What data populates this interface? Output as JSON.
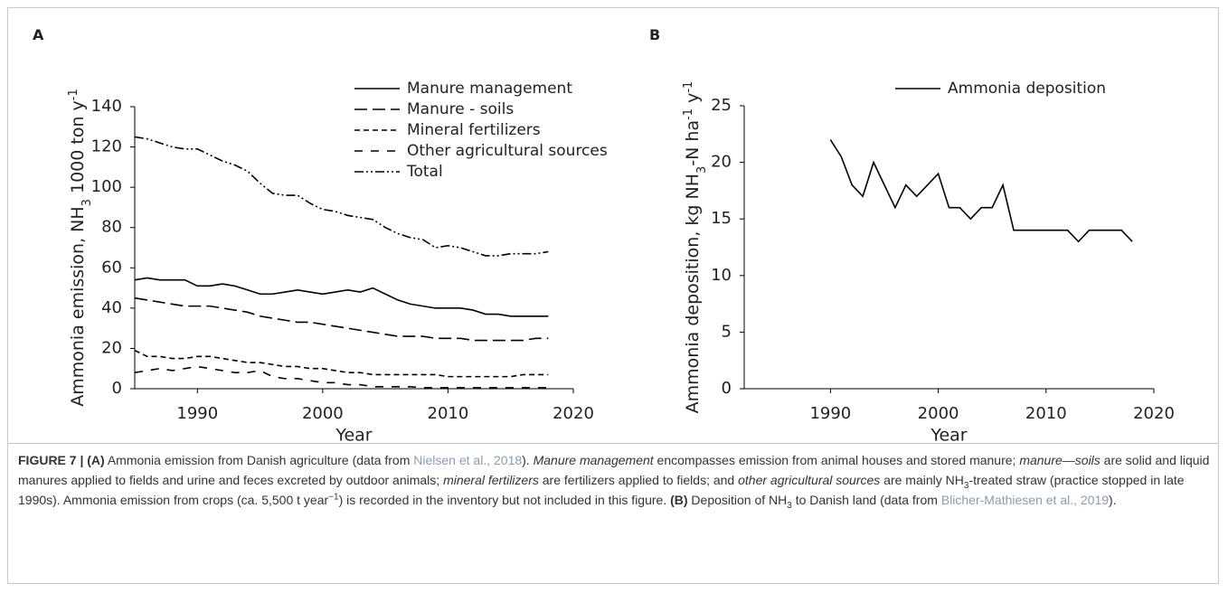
{
  "chart_data": [
    {
      "type": "line",
      "panel": "A",
      "ylabel": [
        {
          "text": "Ammonia emission, NH"
        },
        {
          "text": "3",
          "sub": true
        },
        {
          "text": " 1000 ton y"
        },
        {
          "text": "-1",
          "sup": true
        }
      ],
      "xlabel": "Year",
      "x": [
        1985,
        1986,
        1987,
        1988,
        1989,
        1990,
        1991,
        1992,
        1993,
        1994,
        1995,
        1996,
        1997,
        1998,
        1999,
        2000,
        2001,
        2002,
        2003,
        2004,
        2005,
        2006,
        2007,
        2008,
        2009,
        2010,
        2011,
        2012,
        2013,
        2014,
        2015,
        2016,
        2017,
        2018
      ],
      "series": [
        {
          "name": "Manure management",
          "color": "#000000",
          "dash": "none",
          "values": [
            54,
            55,
            54,
            54,
            54,
            51,
            51,
            52,
            51,
            49,
            47,
            47,
            48,
            49,
            48,
            47,
            48,
            49,
            48,
            50,
            47,
            44,
            42,
            41,
            40,
            40,
            40,
            39,
            37,
            37,
            36,
            36,
            36,
            36
          ]
        },
        {
          "name": "Manure - soils",
          "color": "#000000",
          "dash": "14 6",
          "values": [
            45,
            44,
            43,
            42,
            41,
            41,
            41,
            40,
            39,
            38,
            36,
            35,
            34,
            33,
            33,
            32,
            31,
            30,
            29,
            28,
            27,
            26,
            26,
            26,
            25,
            25,
            25,
            24,
            24,
            24,
            24,
            24,
            25,
            25
          ]
        },
        {
          "name": "Mineral fertilizers",
          "color": "#000000",
          "dash": "6 4",
          "values": [
            19,
            16,
            16,
            15,
            15,
            16,
            16,
            15,
            14,
            13,
            13,
            12,
            11,
            11,
            10,
            10,
            9,
            8,
            8,
            7,
            7,
            7,
            7,
            7,
            7,
            6,
            6,
            6,
            6,
            6,
            6,
            7,
            7,
            7
          ]
        },
        {
          "name": "Other agricultural sources",
          "color": "#000000",
          "dash": "9 9",
          "values": [
            8,
            9,
            10,
            9,
            10,
            11,
            10,
            9,
            8,
            8,
            9,
            6,
            5,
            5,
            4,
            3,
            3,
            2,
            2,
            1,
            1,
            1,
            1,
            0.5,
            0.5,
            0.5,
            0.5,
            0.5,
            0.5,
            0.5,
            0.5,
            0.5,
            0.5,
            0.5
          ]
        },
        {
          "name": "Total",
          "color": "#000000",
          "dash": "10 3 2 3 2 3",
          "values": [
            125,
            124,
            122,
            120,
            119,
            119,
            116,
            113,
            111,
            108,
            102,
            97,
            96,
            96,
            92,
            89,
            88,
            86,
            85,
            84,
            80,
            77,
            75,
            74,
            70,
            71,
            70,
            68,
            66,
            66,
            67,
            67,
            67,
            68
          ]
        }
      ],
      "xlim": [
        1985,
        2020
      ],
      "xticks": [
        1990,
        2000,
        2010,
        2020
      ],
      "ylim": [
        0,
        140
      ],
      "yticks": [
        0,
        20,
        40,
        60,
        80,
        100,
        120,
        140
      ]
    },
    {
      "type": "line",
      "panel": "B",
      "ylabel": [
        {
          "text": "Ammonia deposition, kg NH"
        },
        {
          "text": "3",
          "sub": true
        },
        {
          "text": "-N ha"
        },
        {
          "text": "-1",
          "sup": true
        },
        {
          "text": " y"
        },
        {
          "text": "-1",
          "sup": true
        }
      ],
      "xlabel": "Year",
      "x": [
        1990,
        1991,
        1992,
        1993,
        1994,
        1995,
        1996,
        1997,
        1998,
        1999,
        2000,
        2001,
        2002,
        2003,
        2004,
        2005,
        2006,
        2007,
        2008,
        2009,
        2010,
        2011,
        2012,
        2013,
        2014,
        2015,
        2016,
        2017,
        2018
      ],
      "series": [
        {
          "name": "Ammonia deposition",
          "color": "#000000",
          "dash": "none",
          "values": [
            22,
            20.5,
            18,
            17,
            20,
            18,
            16,
            18,
            17,
            18,
            19,
            16,
            16,
            15,
            16,
            16,
            18,
            14,
            14,
            14,
            14,
            14,
            14,
            13,
            14,
            14,
            14,
            14,
            13
          ]
        }
      ],
      "xlim": [
        1982,
        2020
      ],
      "xticks": [
        1990,
        2000,
        2010,
        2020
      ],
      "ylim": [
        0,
        25
      ],
      "yticks": [
        0,
        5,
        10,
        15,
        20,
        25
      ]
    }
  ],
  "caption": [
    {
      "text": "FIGURE 7 | (A)",
      "b": true
    },
    {
      "text": " Ammonia emission from Danish agriculture (data from "
    },
    {
      "text": "Nielsen et al., 2018",
      "link": true
    },
    {
      "text": "). "
    },
    {
      "text": "Manure management",
      "i": true
    },
    {
      "text": " encompasses emission from animal houses and stored manure; "
    },
    {
      "text": "manure—soils",
      "i": true
    },
    {
      "text": " are solid and liquid manures applied to fields and urine and feces excreted by outdoor animals; "
    },
    {
      "text": "mineral fertilizers",
      "i": true
    },
    {
      "text": " are fertilizers applied to fields; and "
    },
    {
      "text": "other agricultural sources",
      "i": true
    },
    {
      "text": " are mainly NH"
    },
    {
      "text": "3",
      "sub": true
    },
    {
      "text": "-treated straw (practice stopped in late 1990s). Ammonia emission from crops (ca. 5,500 t year"
    },
    {
      "text": "−1",
      "sup": true
    },
    {
      "text": ") is recorded in the inventory but not included in this figure. "
    },
    {
      "text": "(B)",
      "b": true
    },
    {
      "text": " Deposition of NH"
    },
    {
      "text": "3",
      "sub": true
    },
    {
      "text": " to Danish land (data from "
    },
    {
      "text": "Blicher-Mathiesen et al., 2019",
      "link": true
    },
    {
      "text": ")."
    }
  ]
}
